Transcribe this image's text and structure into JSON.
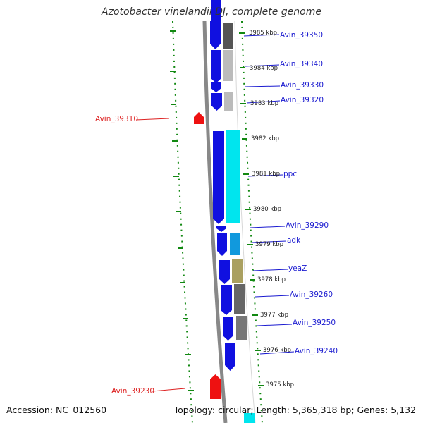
{
  "title": "Azotobacter vinelandii DJ, complete genome",
  "accession_text": "Accession: NC_012560",
  "topology_text": "Topology: circular; Length: 5,365,318 bp; Genes: 5,132",
  "colors": {
    "plus_strand": "#1010e0",
    "minus_strand": "#ee1111",
    "backbone": "#888888",
    "ticks": "#118811",
    "label_plus": "#1a1ad0",
    "label_minus": "#dd2222"
  },
  "kbp_labels": [
    "3985 kbp",
    "3984 kbp",
    "3983 kbp",
    "3982 kbp",
    "3981 kbp",
    "3980 kbp",
    "3979 kbp",
    "3978 kbp",
    "3977 kbp",
    "3976 kbp",
    "3975 kbp"
  ],
  "gene_labels_right": [
    "Avin_39350",
    "Avin_39340",
    "Avin_39330",
    "Avin_39320",
    "ppc",
    "Avin_39290",
    "adk",
    "yeaZ",
    "Avin_39260",
    "Avin_39250",
    "Avin_39240"
  ],
  "gene_labels_left": [
    "Avin_39310",
    "Avin_39230"
  ]
}
